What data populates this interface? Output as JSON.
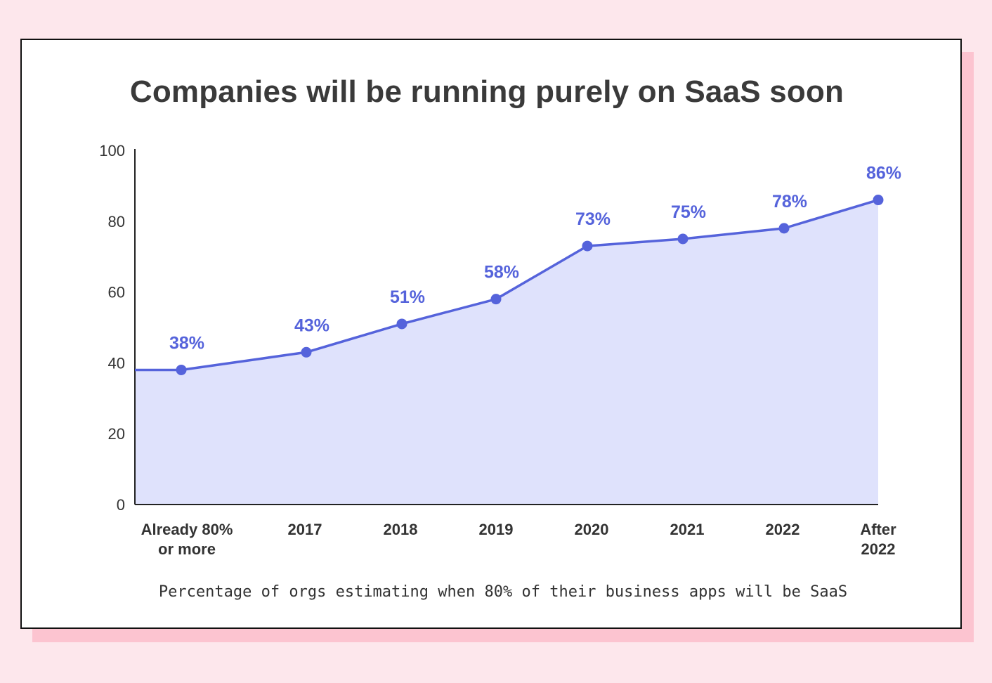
{
  "title": "Companies will be running purely on SaaS soon",
  "caption": "Percentage of orgs estimating when 80% of their business apps will be SaaS",
  "colors": {
    "background": "#fde7ec",
    "shadow": "#fcc4d0",
    "line": "#5563db",
    "area": "#dfe2fc",
    "text": "#3a3a3a"
  },
  "chart_data": {
    "type": "area",
    "title": "Companies will be running purely on SaaS soon",
    "xlabel": "",
    "ylabel": "",
    "ylim": [
      0,
      100
    ],
    "yticks": [
      "0",
      "20",
      "40",
      "60",
      "80",
      "100"
    ],
    "categories": [
      [
        "Already 80%",
        "or more"
      ],
      [
        "2017"
      ],
      [
        "2018"
      ],
      [
        "2019"
      ],
      [
        "2020"
      ],
      [
        "2021"
      ],
      [
        "2022"
      ],
      [
        "After",
        "2022"
      ]
    ],
    "values": [
      38,
      43,
      51,
      58,
      73,
      75,
      78,
      86
    ],
    "data_labels": [
      "38%",
      "43%",
      "51%",
      "58%",
      "73%",
      "75%",
      "78%",
      "86%"
    ],
    "grid": false,
    "legend": "none"
  }
}
